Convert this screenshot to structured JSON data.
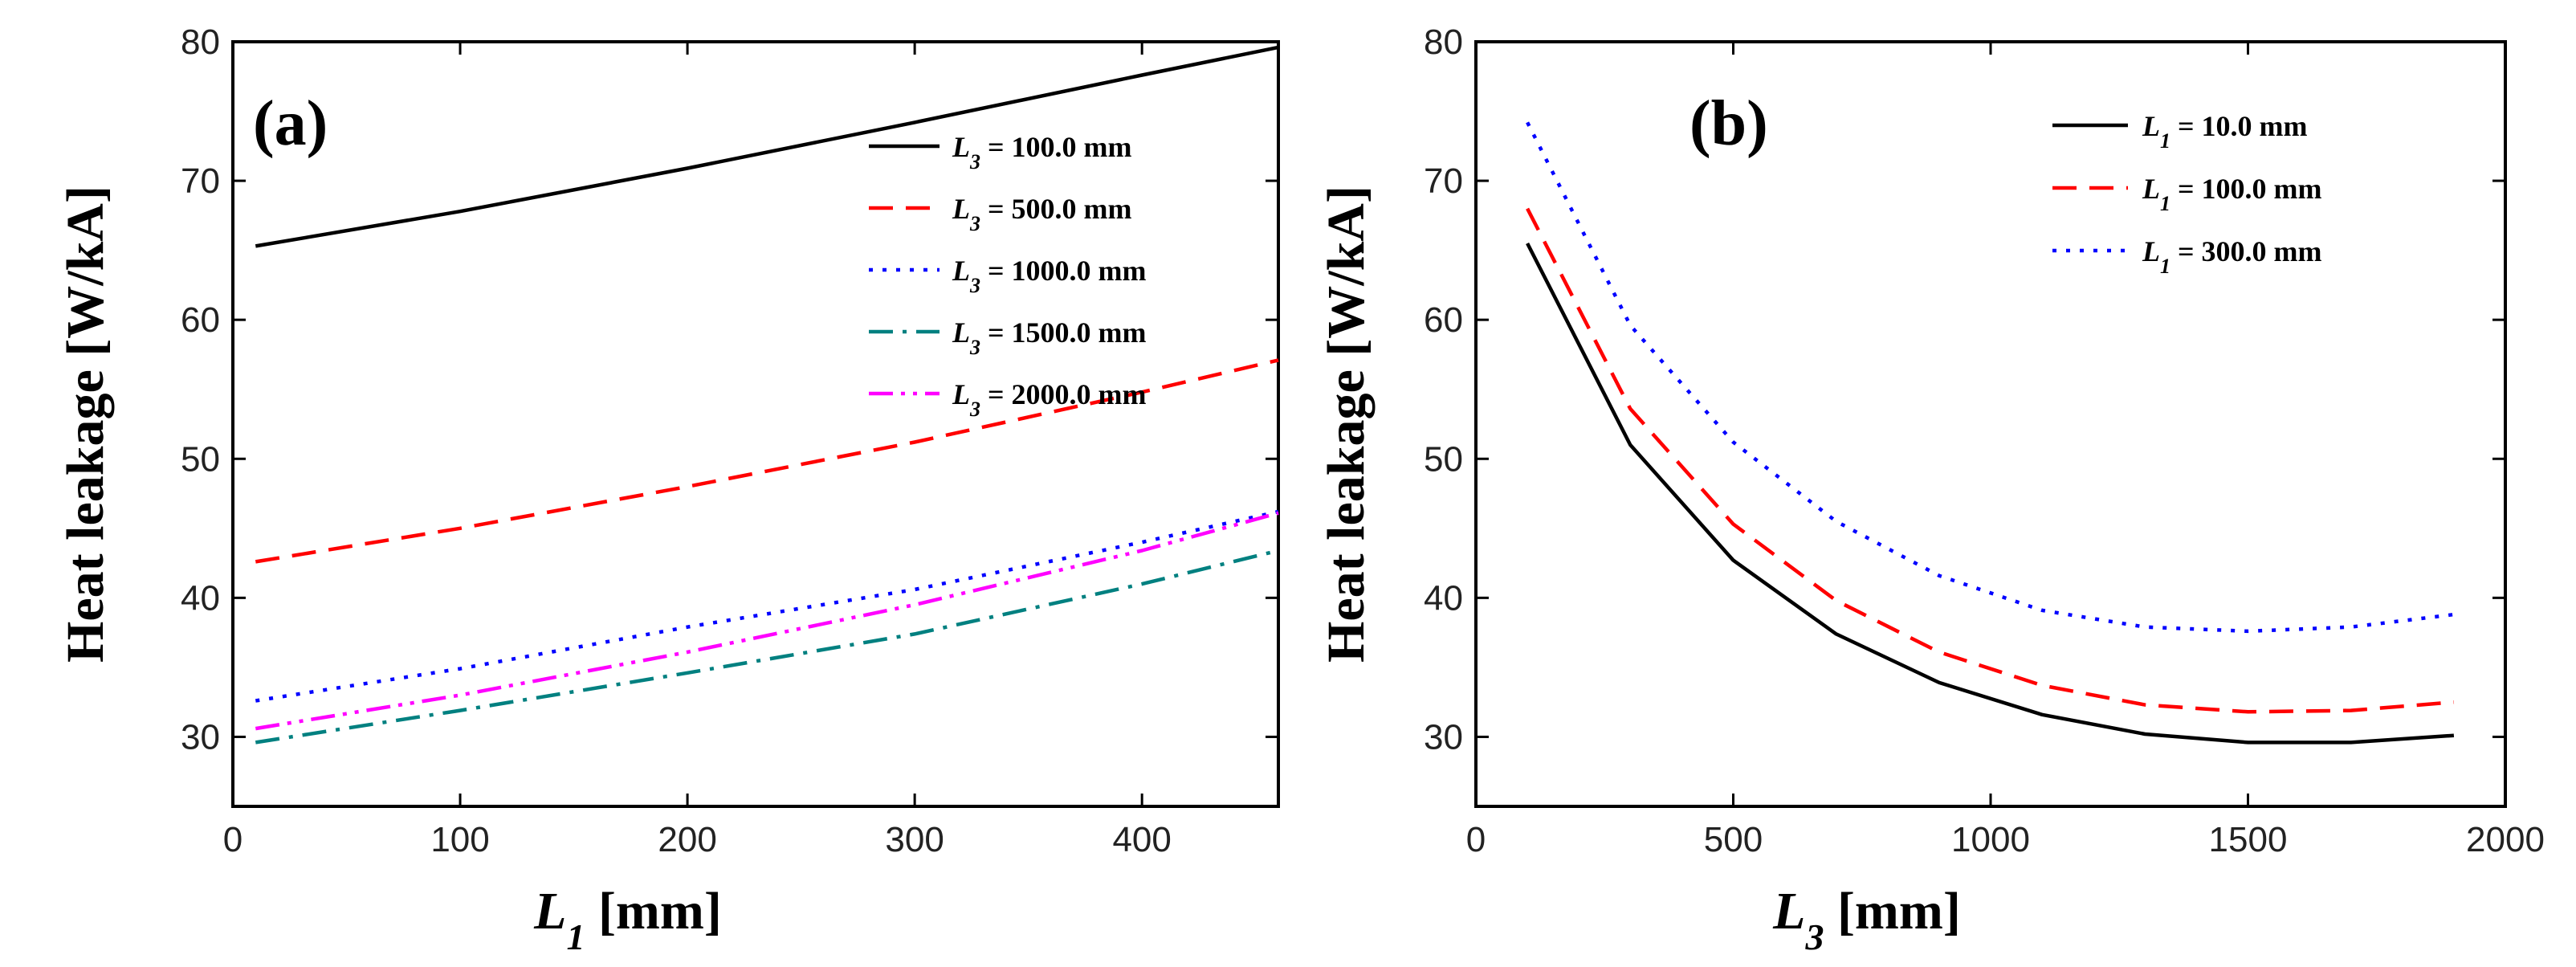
{
  "chart_data": [
    {
      "type": "line",
      "panel_label": "(a)",
      "x_label_var": "L",
      "x_label_sub": "1",
      "x_label_unit": " [mm]",
      "ylabel": "Heat leakage [W/kA]",
      "xlim": [
        0,
        460
      ],
      "ylim": [
        25,
        80
      ],
      "x_ticks": [
        "0",
        "100",
        "200",
        "300",
        "400"
      ],
      "x_tick_values": [
        0,
        100,
        200,
        300,
        400
      ],
      "y_ticks": [
        "30",
        "40",
        "50",
        "60",
        "70",
        "80"
      ],
      "y_tick_values": [
        30,
        40,
        50,
        60,
        70,
        80
      ],
      "grid": false,
      "legend_position": "top-right",
      "x": [
        10,
        100,
        200,
        300,
        400,
        460
      ],
      "series": [
        {
          "var": "L",
          "sub": "3",
          "label": " = 100.0 mm",
          "color": "#000000",
          "dash": "solid",
          "values": [
            65.3,
            67.8,
            70.9,
            74.2,
            77.6,
            79.6
          ]
        },
        {
          "var": "L",
          "sub": "3",
          "label": " = 500.0 mm",
          "color": "#ff0000",
          "dash": "dash",
          "values": [
            42.6,
            45.0,
            48.0,
            51.2,
            54.8,
            57.1
          ]
        },
        {
          "var": "L",
          "sub": "3",
          "label": " = 1000.0 mm",
          "color": "#0000ff",
          "dash": "dot",
          "values": [
            32.6,
            34.9,
            37.9,
            40.6,
            44.0,
            46.2
          ]
        },
        {
          "var": "L",
          "sub": "3",
          "label": " = 1500.0 mm",
          "color": "#008080",
          "dash": "dashdot",
          "values": [
            29.6,
            31.9,
            34.6,
            37.4,
            41.0,
            43.4
          ]
        },
        {
          "var": "L",
          "sub": "3",
          "label": " = 2000.0 mm",
          "color": "#ff00ff",
          "dash": "dashdotdot",
          "values": [
            30.6,
            33.0,
            36.1,
            39.5,
            43.4,
            46.1
          ]
        }
      ]
    },
    {
      "type": "line",
      "panel_label": "(b)",
      "x_label_var": "L",
      "x_label_sub": "3",
      "x_label_unit": " [mm]",
      "ylabel": "Heat leakage [W/kA]",
      "xlim": [
        0,
        2000
      ],
      "ylim": [
        25,
        80
      ],
      "x_ticks": [
        "0",
        "500",
        "1000",
        "1500",
        "2000"
      ],
      "x_tick_values": [
        0,
        500,
        1000,
        1500,
        2000
      ],
      "y_ticks": [
        "30",
        "40",
        "50",
        "60",
        "70",
        "80"
      ],
      "y_tick_values": [
        30,
        40,
        50,
        60,
        70,
        80
      ],
      "grid": false,
      "legend_position": "top-right",
      "x": [
        100,
        300,
        500,
        700,
        900,
        1100,
        1300,
        1500,
        1700,
        1900
      ],
      "series": [
        {
          "var": "L",
          "sub": "1",
          "label": " = 10.0 mm",
          "color": "#000000",
          "dash": "solid",
          "values": [
            65.5,
            51.0,
            42.7,
            37.4,
            33.9,
            31.6,
            30.2,
            29.6,
            29.6,
            30.1
          ]
        },
        {
          "var": "L",
          "sub": "1",
          "label": " = 100.0 mm",
          "color": "#ff0000",
          "dash": "dash",
          "values": [
            68.0,
            53.6,
            45.3,
            39.8,
            36.1,
            33.7,
            32.3,
            31.8,
            31.9,
            32.5
          ]
        },
        {
          "var": "L",
          "sub": "1",
          "label": " = 300.0 mm",
          "color": "#0000ff",
          "dash": "dot",
          "values": [
            74.2,
            59.6,
            51.2,
            45.5,
            41.6,
            39.1,
            37.9,
            37.6,
            37.9,
            38.8
          ]
        }
      ]
    }
  ]
}
